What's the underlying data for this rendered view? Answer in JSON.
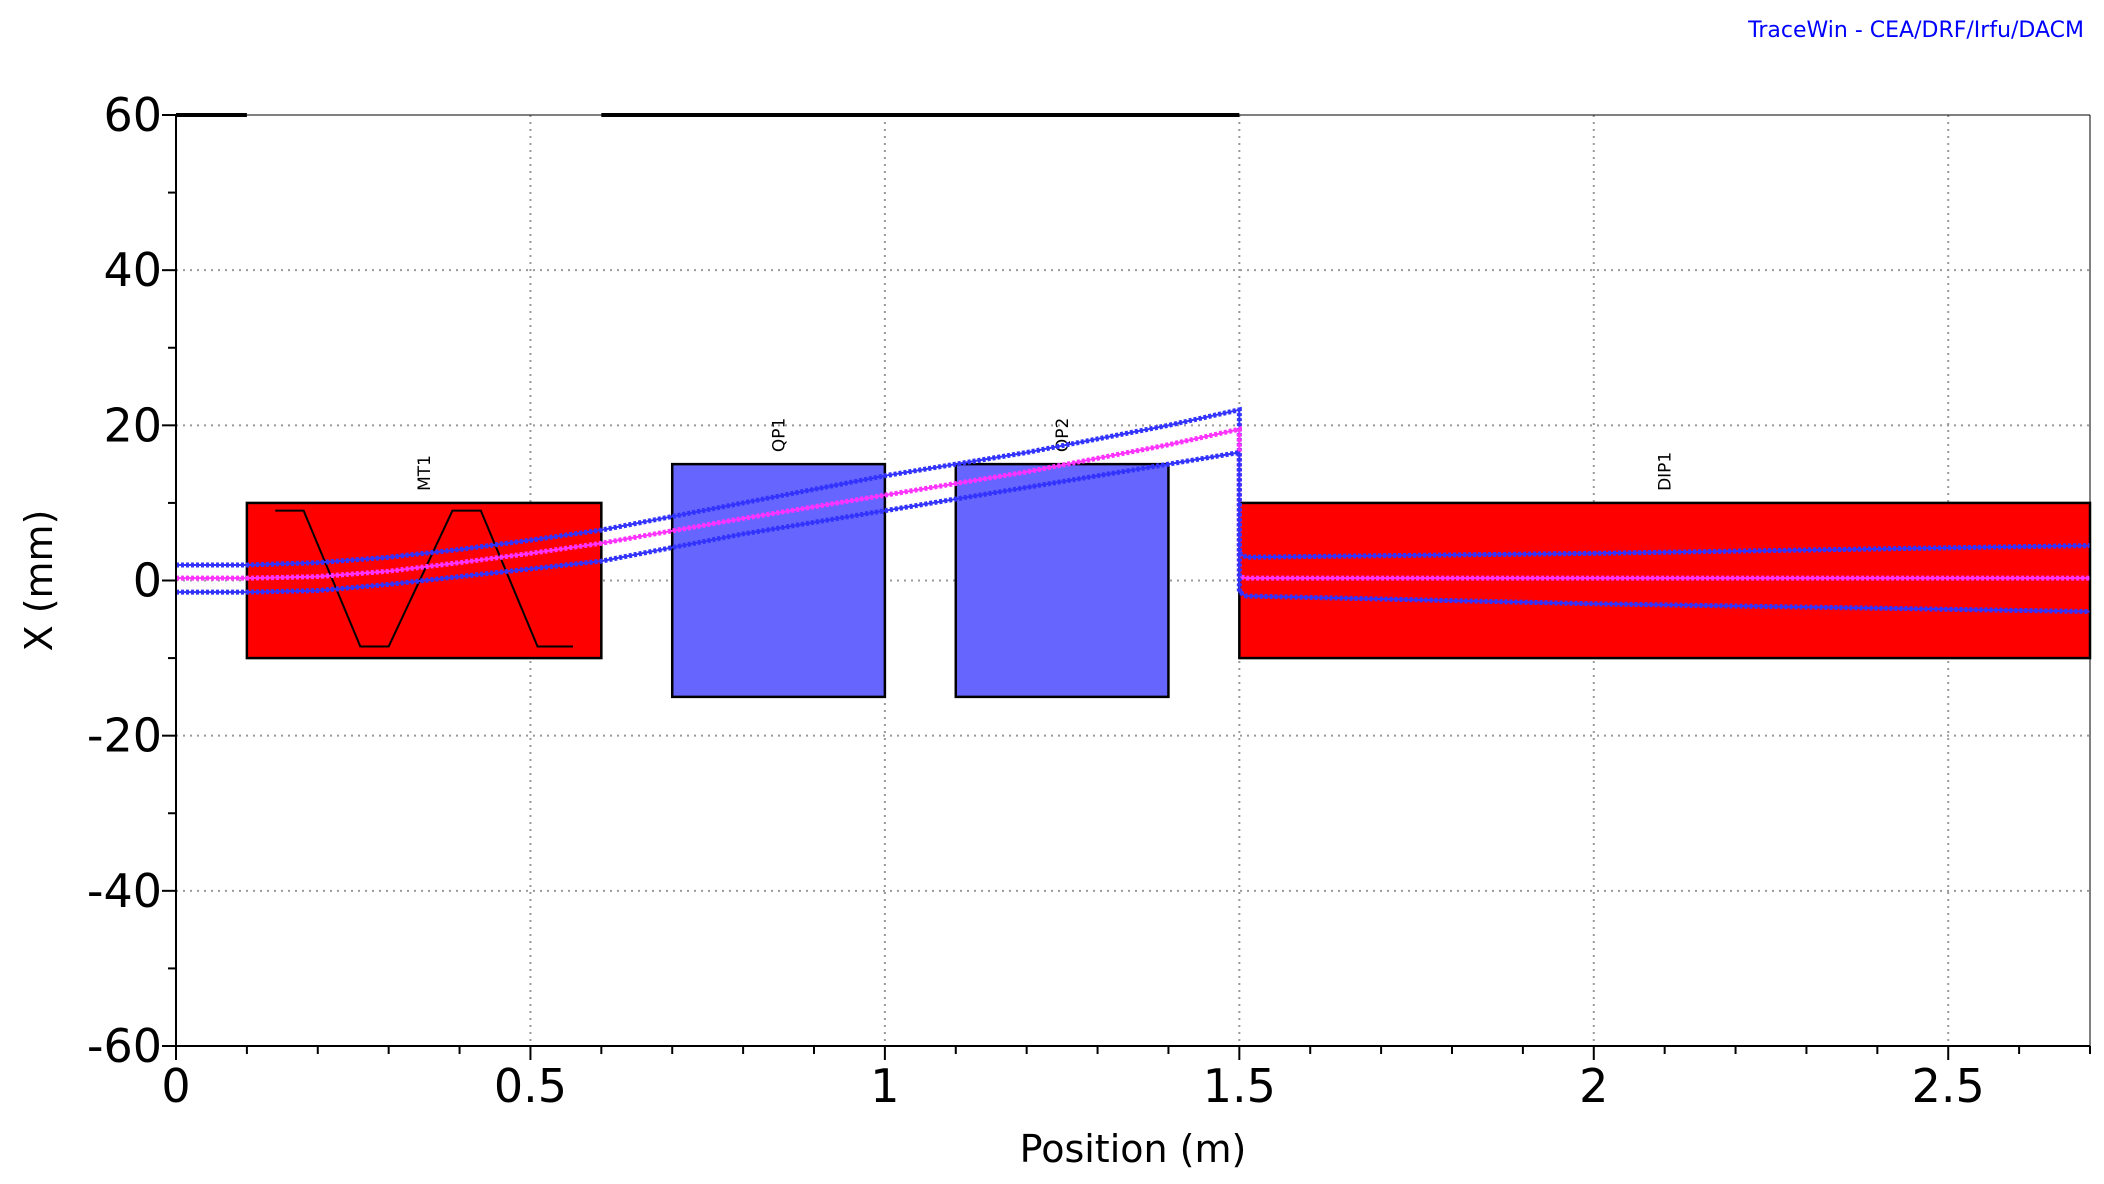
{
  "credit": "TraceWin - CEA/DRF/Irfu/DACM",
  "chart_data": {
    "type": "line",
    "title": "",
    "xlabel": "Position (m)",
    "ylabel": "X (mm)",
    "xlim": [
      0,
      2.7
    ],
    "ylim": [
      -60,
      60
    ],
    "grid": true,
    "xticks": [
      "0",
      "0.5",
      "1",
      "1.5",
      "2",
      "2.5"
    ],
    "xtick_values": [
      0,
      0.5,
      1,
      1.5,
      2,
      2.5
    ],
    "yticks": [
      "60",
      "40",
      "20",
      "0",
      "-20",
      "-40",
      "-60"
    ],
    "ytick_values": [
      60,
      40,
      20,
      0,
      -20,
      -40,
      -60
    ],
    "elements": [
      {
        "name": "MT1",
        "start": 0.1,
        "end": 0.6,
        "aperture": 10,
        "color": "#ff0000"
      },
      {
        "name": "QP1",
        "start": 0.7,
        "end": 1.0,
        "aperture": 15,
        "color": "#6666ff"
      },
      {
        "name": "QP2",
        "start": 1.1,
        "end": 1.4,
        "aperture": 15,
        "color": "#6666ff"
      },
      {
        "name": "DIP1",
        "start": 1.5,
        "end": 2.7,
        "aperture": 10,
        "color": "#ff0000"
      }
    ],
    "mt1_field_profile": {
      "x": [
        0.14,
        0.18,
        0.26,
        0.3,
        0.39,
        0.43,
        0.51,
        0.56
      ],
      "y": [
        9,
        9,
        -8.5,
        -8.5,
        9,
        9,
        -8.5,
        -8.5
      ]
    },
    "series": [
      {
        "name": "envelope-upper",
        "color": "#3333ff",
        "x": [
          0,
          0.1,
          0.2,
          0.3,
          0.4,
          0.5,
          0.6,
          0.8,
          1.0,
          1.2,
          1.4,
          1.5,
          1.5,
          1.51,
          2.0,
          2.7
        ],
        "y": [
          2,
          2,
          2.3,
          3,
          4,
          5.2,
          6.5,
          10,
          13.5,
          16.5,
          20,
          22,
          3.5,
          3,
          3.5,
          4.5
        ]
      },
      {
        "name": "centroid",
        "color": "#ff33ff",
        "x": [
          0,
          0.1,
          0.2,
          0.3,
          0.4,
          0.5,
          0.6,
          0.8,
          1.0,
          1.2,
          1.4,
          1.5,
          1.5,
          1.51,
          2.0,
          2.7
        ],
        "y": [
          0.3,
          0.3,
          0.5,
          1.2,
          2.3,
          3.5,
          4.8,
          8,
          11,
          14,
          17.5,
          19.5,
          0.5,
          0.3,
          0.3,
          0.3
        ]
      },
      {
        "name": "envelope-lower",
        "color": "#3333ff",
        "x": [
          0,
          0.1,
          0.2,
          0.3,
          0.4,
          0.5,
          0.6,
          0.8,
          1.0,
          1.2,
          1.4,
          1.5,
          1.5,
          1.51,
          2.0,
          2.7
        ],
        "y": [
          -1.5,
          -1.5,
          -1.3,
          -0.5,
          0.5,
          1.5,
          2.5,
          6,
          9,
          12,
          15,
          16.5,
          -1.5,
          -2,
          -3,
          -4
        ]
      }
    ]
  }
}
